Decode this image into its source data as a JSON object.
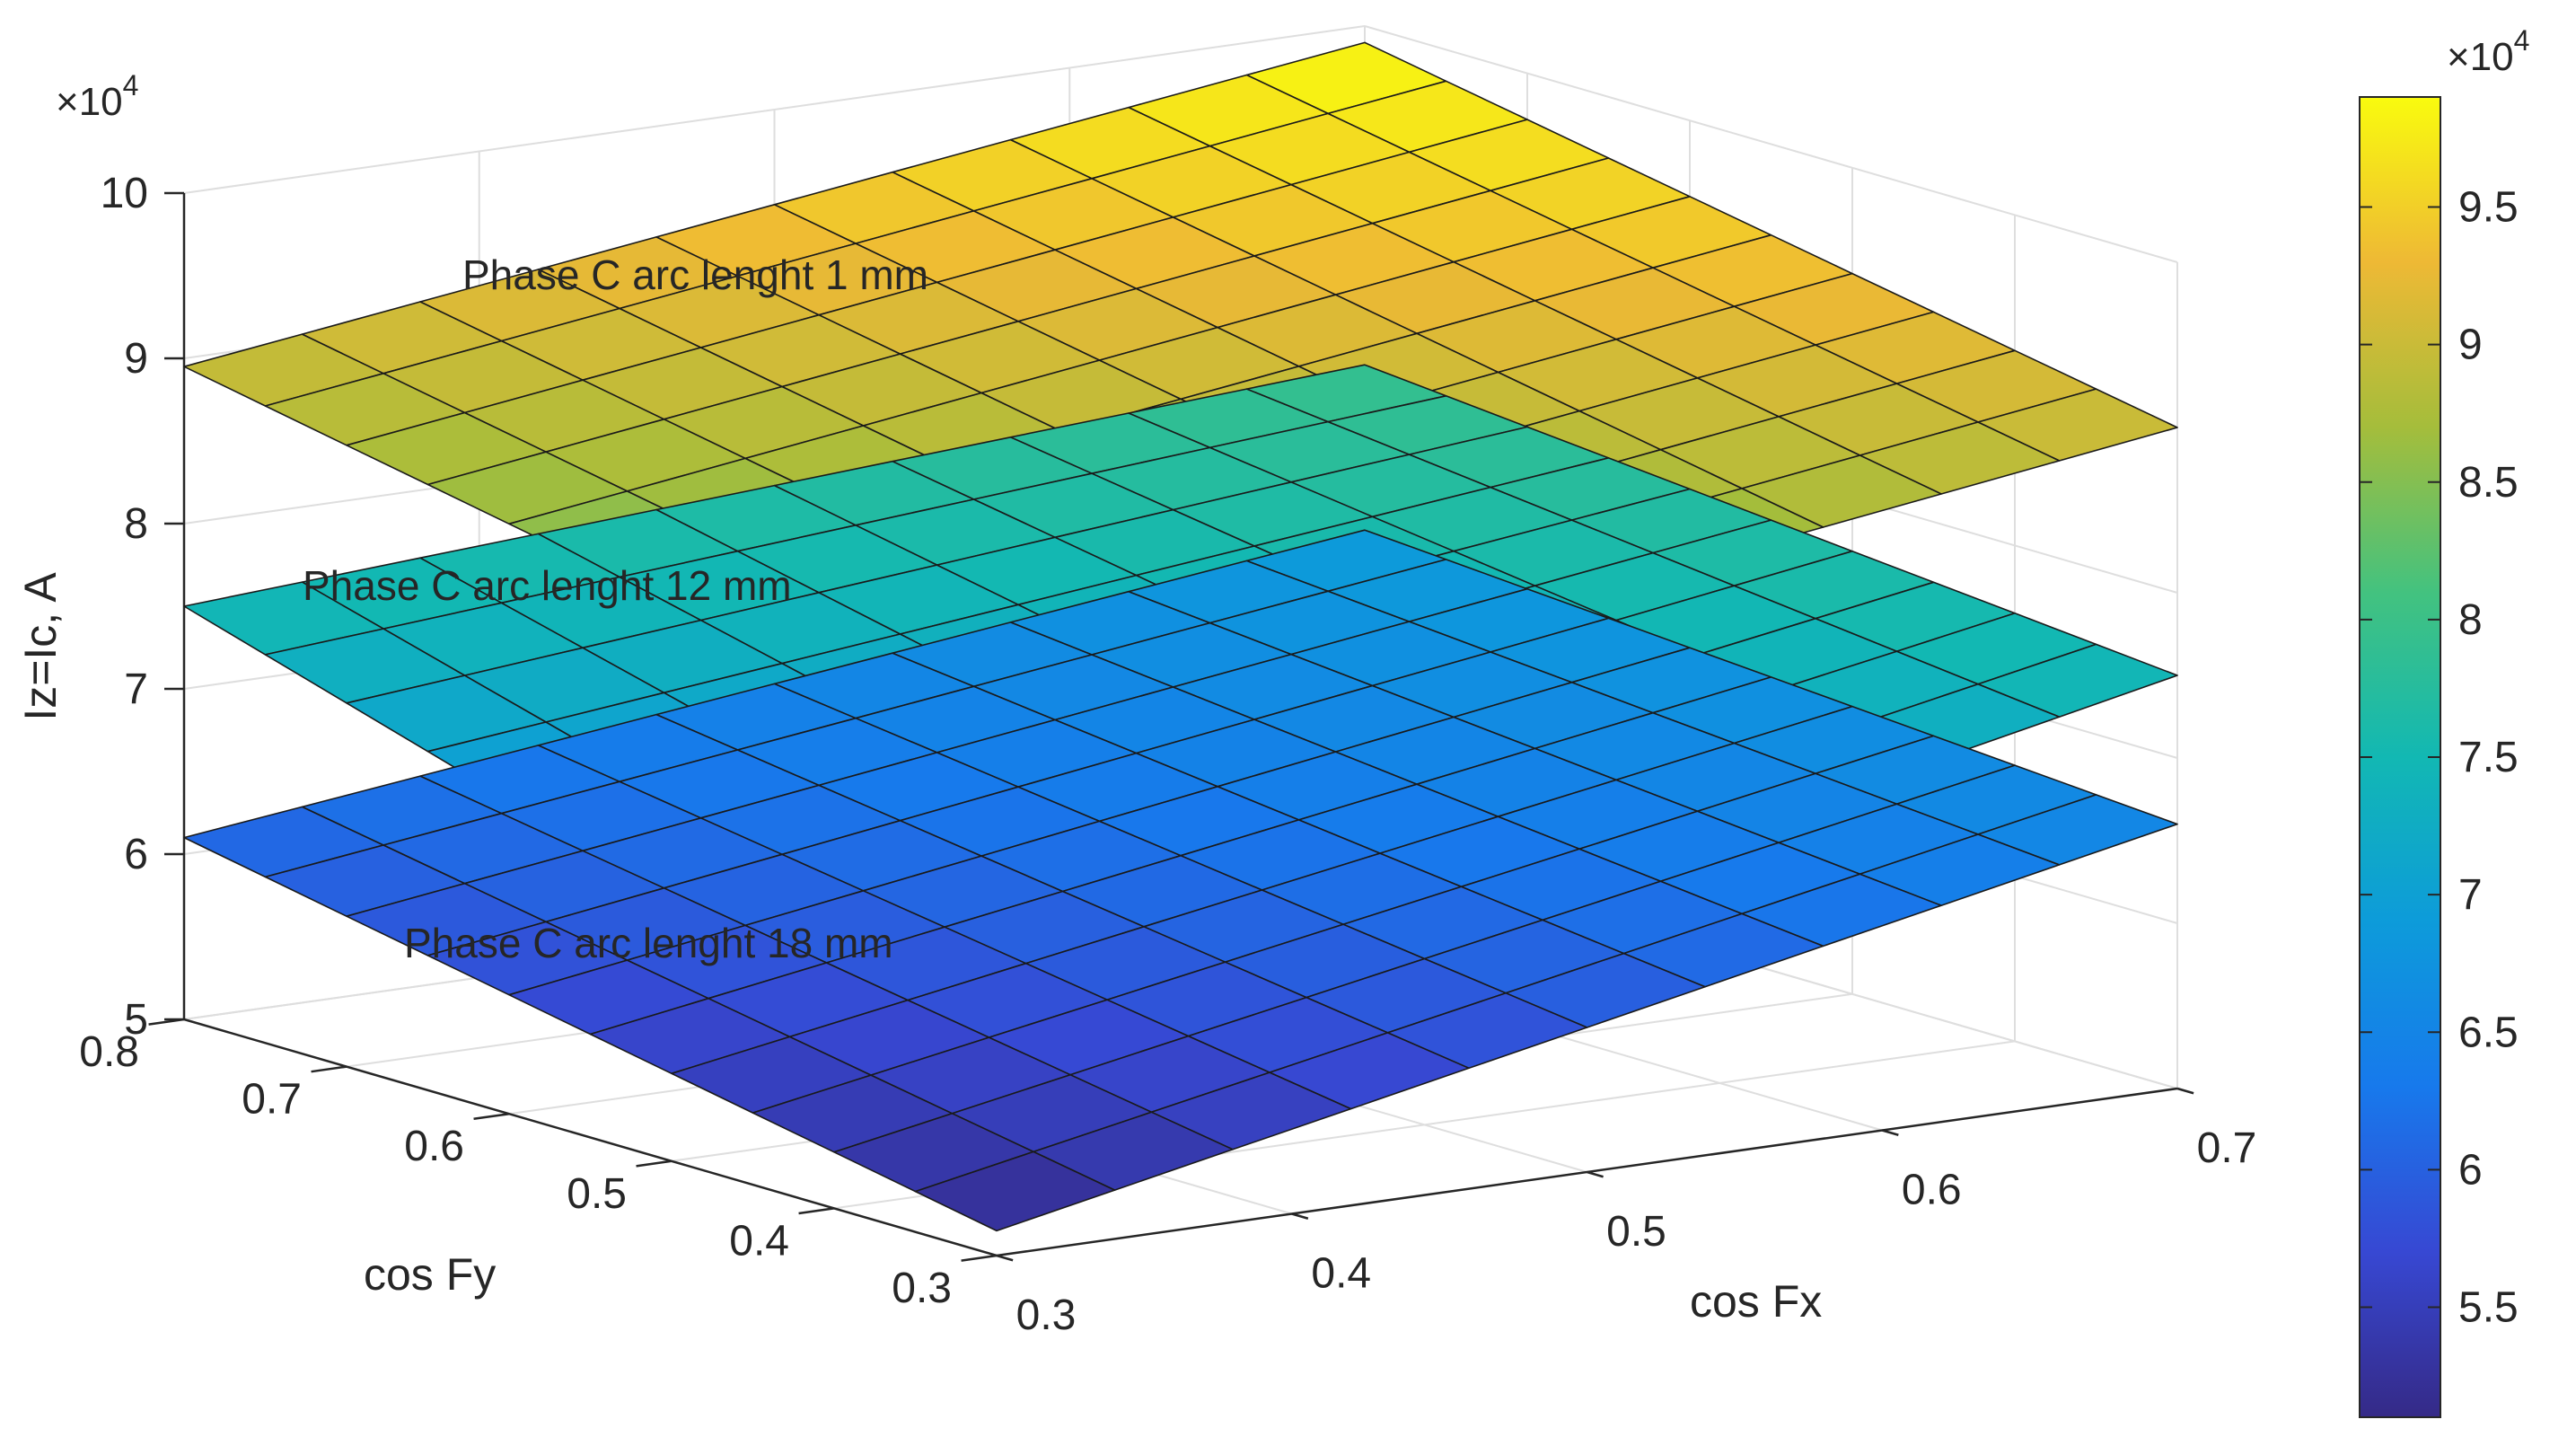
{
  "chart_data": {
    "type": "surface3d",
    "title": "",
    "xlabel": "cos Fx",
    "ylabel": "cos Fy",
    "zlabel": "Iz=Ic, A",
    "xlim": [
      0.3,
      0.7
    ],
    "ylim": [
      0.3,
      0.8
    ],
    "zlim": [
      5,
      10
    ],
    "x_ticks": [
      0.3,
      0.4,
      0.5,
      0.6,
      0.7
    ],
    "y_ticks": [
      0.3,
      0.4,
      0.5,
      0.6,
      0.7,
      0.8
    ],
    "z_ticks": [
      5,
      6,
      7,
      8,
      9,
      10
    ],
    "x_tick_labels": [
      "0.3",
      "0.4",
      "0.5",
      "0.6",
      "0.7"
    ],
    "y_tick_labels": [
      "0.3",
      "0.4",
      "0.5",
      "0.6",
      "0.7",
      "0.8"
    ],
    "z_tick_labels": [
      "5",
      "6",
      "7",
      "8",
      "9",
      "10"
    ],
    "z_exponent_base": "×10",
    "z_exponent_power": "4",
    "z_scale": 10000,
    "colorbar": {
      "limits": [
        5.1,
        9.9
      ],
      "ticks": [
        5.5,
        6,
        6.5,
        7,
        7.5,
        8,
        8.5,
        9,
        9.5
      ],
      "tick_labels": [
        "5.5",
        "6",
        "6.5",
        "7",
        "7.5",
        "8",
        "8.5",
        "9",
        "9.5"
      ],
      "exponent_base": "×10",
      "exponent_power": "4",
      "colormap": "parula"
    },
    "grid": true,
    "series": [
      {
        "name": "Phase C arc lenght 1 mm",
        "label": "Phase C arc lenght 1 mm",
        "x_range": [
          0.3,
          0.7
        ],
        "y_range": [
          0.3,
          0.8
        ],
        "corner_z": {
          "x0y0": 8.0,
          "x1y0": 9.0,
          "x0y1": 8.95,
          "x1y1": 9.9
        }
      },
      {
        "name": "Phase C arc lenght 12 mm",
        "label": "Phase C arc lenght 12 mm",
        "x_range": [
          0.3,
          0.7
        ],
        "y_range": [
          0.3,
          0.8
        ],
        "corner_z": {
          "x0y0": 6.0,
          "x1y0": 7.5,
          "x0y1": 7.5,
          "x1y1": 7.95
        }
      },
      {
        "name": "Phase C arc lenght 18 mm",
        "label": "Phase C arc lenght 18 mm",
        "x_range": [
          0.3,
          0.7
        ],
        "y_range": [
          0.3,
          0.8
        ],
        "corner_z": {
          "x0y0": 5.15,
          "x1y0": 6.6,
          "x0y1": 6.1,
          "x1y1": 6.95
        }
      }
    ]
  }
}
